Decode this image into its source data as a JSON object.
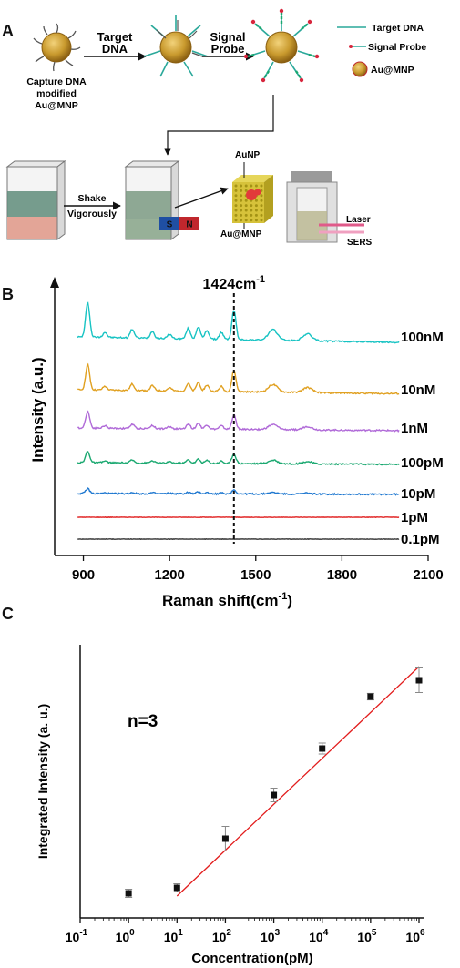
{
  "panel_a": {
    "letter": "A",
    "caption_line1": "Capture DNA",
    "caption_line2": "modified",
    "caption_line3": "Au@MNP",
    "step1_line1": "Target",
    "step1_line2": "DNA",
    "step2_line1": "Signal",
    "step2_line2": "Probe",
    "legend": {
      "target": "Target DNA",
      "signal": "Signal Probe",
      "au": "Au@MNP"
    },
    "shake_line1": "Shake",
    "shake_line2": "Vigorously",
    "magnet_s": "S",
    "magnet_n": "N",
    "aunp": "AuNP",
    "aumnp": "Au@MNP",
    "laser": "Laser",
    "sers": "SERS",
    "colors": {
      "gold": "#c99a2e",
      "target": "#2aa89a",
      "probe": "#d7263d",
      "magnet_s": "#1f4fa3",
      "magnet_n": "#c0272d"
    }
  },
  "panel_b": {
    "letter": "B",
    "peak_label": "1424cm",
    "peak_sup": "-1",
    "ylabel": "Intensity (a.u.)",
    "xlabel": "Raman shift(cm",
    "xlabel_sup": "-1",
    "xlabel_end": ")"
  },
  "panel_c": {
    "letter": "C",
    "annotation": "n=3",
    "ylabel": "Integrated Intensity (a. u.)",
    "xlabel": "Concentration(pM)"
  },
  "chart_data": [
    {
      "type": "line",
      "x_range": [
        800,
        2100
      ],
      "x_ticks": [
        900,
        1200,
        1500,
        1800,
        2100
      ],
      "marker_x": 1424,
      "series": [
        {
          "name": "100nM",
          "color": "#17c3c3",
          "amplitude": 1.0
        },
        {
          "name": "10nM",
          "color": "#e0a020",
          "amplitude": 0.72
        },
        {
          "name": "1nM",
          "color": "#b06ad8",
          "amplitude": 0.48
        },
        {
          "name": "100pM",
          "color": "#1aa870",
          "amplitude": 0.33
        },
        {
          "name": "10pM",
          "color": "#1f78d0",
          "amplitude": 0.14
        },
        {
          "name": "1pM",
          "color": "#e02020",
          "amplitude": 0.0
        },
        {
          "name": "0.1pM",
          "color": "#333333",
          "amplitude": 0.0
        }
      ],
      "peaks": [
        {
          "x": 915,
          "h": 1.0
        },
        {
          "x": 975,
          "h": 0.15
        },
        {
          "x": 1070,
          "h": 0.25
        },
        {
          "x": 1140,
          "h": 0.2
        },
        {
          "x": 1200,
          "h": 0.12
        },
        {
          "x": 1265,
          "h": 0.3
        },
        {
          "x": 1300,
          "h": 0.35
        },
        {
          "x": 1330,
          "h": 0.25
        },
        {
          "x": 1380,
          "h": 0.2
        },
        {
          "x": 1424,
          "h": 0.85
        },
        {
          "x": 1560,
          "h": 0.3
        },
        {
          "x": 1680,
          "h": 0.2
        }
      ]
    },
    {
      "type": "scatter",
      "x_log_range": [
        -1,
        6
      ],
      "x_tick_labels": [
        "10^-1",
        "10^0",
        "10^1",
        "10^2",
        "10^3",
        "10^4",
        "10^5",
        "10^6"
      ],
      "y_range": [
        0,
        100
      ],
      "points": [
        {
          "x": 1,
          "y": 9,
          "err": 1.5
        },
        {
          "x": 10,
          "y": 11,
          "err": 1.5
        },
        {
          "x": 100,
          "y": 29,
          "err": 4.5
        },
        {
          "x": 1000,
          "y": 45,
          "err": 2.5
        },
        {
          "x": 10000,
          "y": 62,
          "err": 2.0
        },
        {
          "x": 100000,
          "y": 81,
          "err": 1.2
        },
        {
          "x": 1000000,
          "y": 87,
          "err": 4.5
        }
      ],
      "fit": {
        "x_start": 10,
        "y_start": 8,
        "x_end": 1000000,
        "y_end": 92,
        "color": "#e21c1c"
      }
    }
  ]
}
